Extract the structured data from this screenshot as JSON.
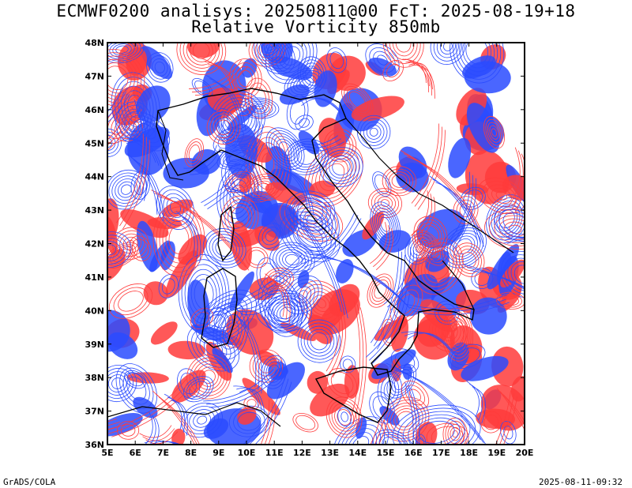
{
  "header": {
    "title_line1": "ECMWF0200 analisys: 20250811@00 FcT: 2025-08-19+18",
    "title_line2": "Relative Vorticity 850mb"
  },
  "map": {
    "lon_range": [
      5,
      20
    ],
    "lat_range": [
      36,
      48
    ],
    "lon_labels": [
      "5E",
      "6E",
      "7E",
      "8E",
      "9E",
      "10E",
      "11E",
      "12E",
      "13E",
      "14E",
      "15E",
      "16E",
      "17E",
      "18E",
      "19E",
      "20E"
    ],
    "lat_labels": [
      "36N",
      "37N",
      "38N",
      "39N",
      "40N",
      "41N",
      "42N",
      "43N",
      "44N",
      "45N",
      "46N",
      "47N",
      "48N"
    ],
    "colors": {
      "positive": "#ff3b3b",
      "negative": "#2a4bff",
      "coast": "#000000"
    }
  },
  "footer": {
    "left": "GrADS/COLA",
    "right": "2025-08-11-09:32"
  }
}
